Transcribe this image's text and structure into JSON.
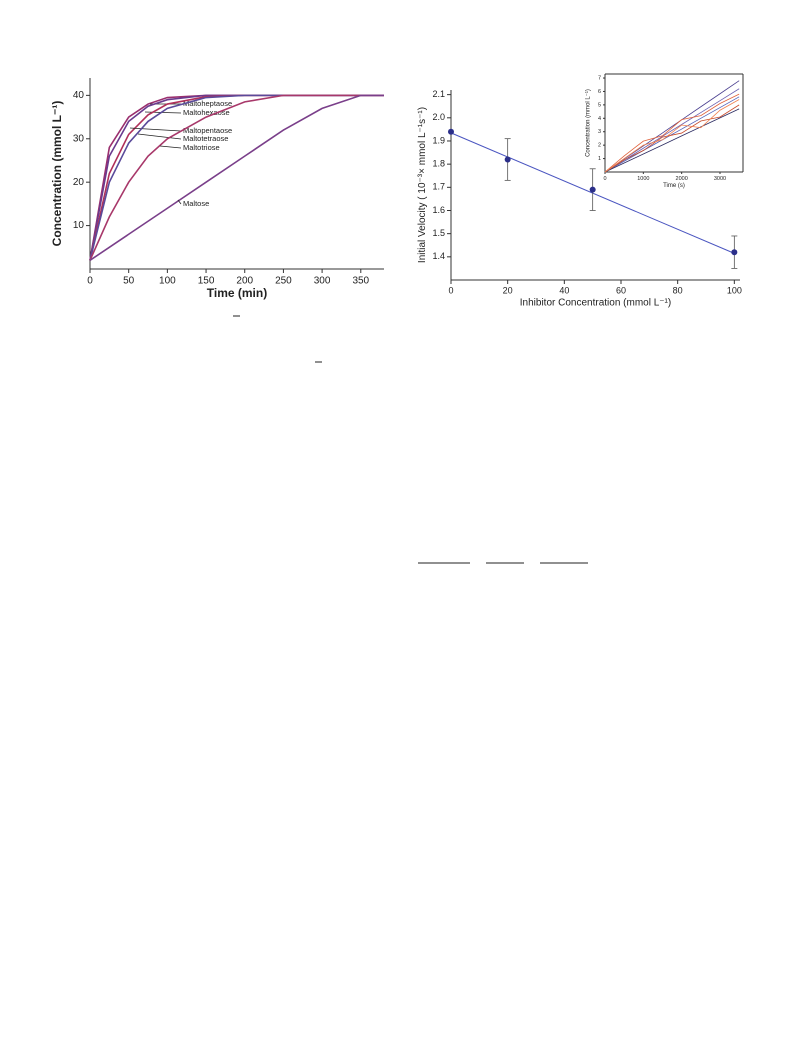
{
  "chart_data": [
    {
      "type": "line",
      "x_label": "Time (min)",
      "y_label": "Concentration (mmol L⁻¹)",
      "x": [
        0,
        25,
        50,
        75,
        100,
        150,
        200,
        250,
        300,
        350,
        380
      ],
      "series": [
        {
          "name": "Maltoheptaose",
          "color": "#9a2f6e",
          "values": [
            2,
            28,
            35,
            38,
            39.5,
            40,
            40,
            40,
            40,
            40,
            40
          ]
        },
        {
          "name": "Maltohexaose",
          "color": "#6a3a8e",
          "values": [
            2,
            26,
            34,
            37.5,
            39,
            40,
            40,
            40,
            40,
            40,
            40
          ]
        },
        {
          "name": "Maltopentaose",
          "color": "#b0305a",
          "values": [
            2,
            22,
            31,
            35.5,
            38,
            39.7,
            40,
            40,
            40,
            40,
            40
          ]
        },
        {
          "name": "Maltotetraose",
          "color": "#5a4a9a",
          "values": [
            2,
            20,
            29,
            34,
            37,
            39.5,
            40,
            40,
            40,
            40,
            40
          ]
        },
        {
          "name": "Maltotriose",
          "color": "#a8386a",
          "values": [
            2,
            12,
            20,
            26,
            30,
            35,
            38.5,
            40,
            40,
            40,
            40
          ]
        },
        {
          "name": "Maltose",
          "color": "#7a3f8a",
          "values": [
            2,
            5,
            8,
            11,
            14,
            20,
            26,
            32,
            37,
            40,
            40
          ]
        }
      ],
      "xlim": [
        0,
        380
      ],
      "ylim": [
        0,
        44
      ],
      "xticks": [
        0,
        50,
        100,
        150,
        200,
        250,
        300,
        350
      ],
      "yticks": [
        10,
        20,
        30,
        40
      ]
    },
    {
      "type": "scatter",
      "x_label": "Inhibitor Concentration (mmol L⁻¹)",
      "y_label": "Initial Velocity ( 10⁻³× mmol L⁻¹s⁻¹)",
      "x": [
        0,
        20,
        50,
        100
      ],
      "values": [
        1.94,
        1.82,
        1.69,
        1.42
      ],
      "errors": [
        0,
        0.09,
        0.09,
        0.07
      ],
      "color": "#2b2f8a",
      "fit": {
        "x": [
          0,
          100
        ],
        "values": [
          1.935,
          1.415
        ],
        "color": "#4a55c0"
      },
      "xlim": [
        0,
        102
      ],
      "ylim": [
        1.3,
        2.12
      ],
      "xticks": [
        0,
        20,
        40,
        60,
        80,
        100
      ],
      "yticks": [
        1.4,
        1.5,
        1.6,
        1.7,
        1.8,
        1.9,
        {
          "value": 2,
          "label": "2.0"
        },
        2.1
      ]
    },
    {
      "type": "line",
      "x_label": "Time (s)",
      "y_label": "Concentration (mmol L⁻¹)",
      "x": [
        0,
        500,
        1000,
        1500,
        2000,
        2500,
        3000,
        3500
      ],
      "series": [
        {
          "color": "#4a3f8f",
          "values": [
            0,
            0.97,
            1.94,
            2.91,
            3.89,
            4.86,
            5.83,
            6.8
          ]
        },
        {
          "color": "#6a5fb0",
          "values": [
            0,
            0.89,
            1.77,
            2.66,
            3.54,
            4.43,
            5.31,
            6.2
          ]
        },
        {
          "color": "#5060b8",
          "values": [
            0,
            0.8,
            1.6,
            2.4,
            3.2,
            4.0,
            4.8,
            5.6
          ]
        },
        {
          "color": "#2a2a60",
          "values": [
            0,
            0.67,
            1.34,
            2.01,
            2.69,
            3.36,
            4.03,
            4.7
          ]
        },
        {
          "color": "#e0603a",
          "values": [
            0,
            1.2,
            2.3,
            2.7,
            3.9,
            4.2,
            5.1,
            5.8
          ]
        },
        {
          "color": "#c84a2a",
          "values": [
            0,
            0.9,
            1.6,
            2.6,
            2.9,
            3.8,
            4.1,
            5.0
          ]
        },
        {
          "color": "#f08050",
          "values": [
            0,
            1.0,
            2.0,
            2.4,
            3.5,
            3.3,
            4.6,
            5.4
          ]
        }
      ],
      "xlim": [
        0,
        3600
      ],
      "ylim": [
        0,
        7.3
      ],
      "xticks": [
        0,
        1000,
        2000,
        3000
      ],
      "yticks": [
        1,
        2,
        3,
        4,
        5,
        6,
        7
      ]
    }
  ]
}
